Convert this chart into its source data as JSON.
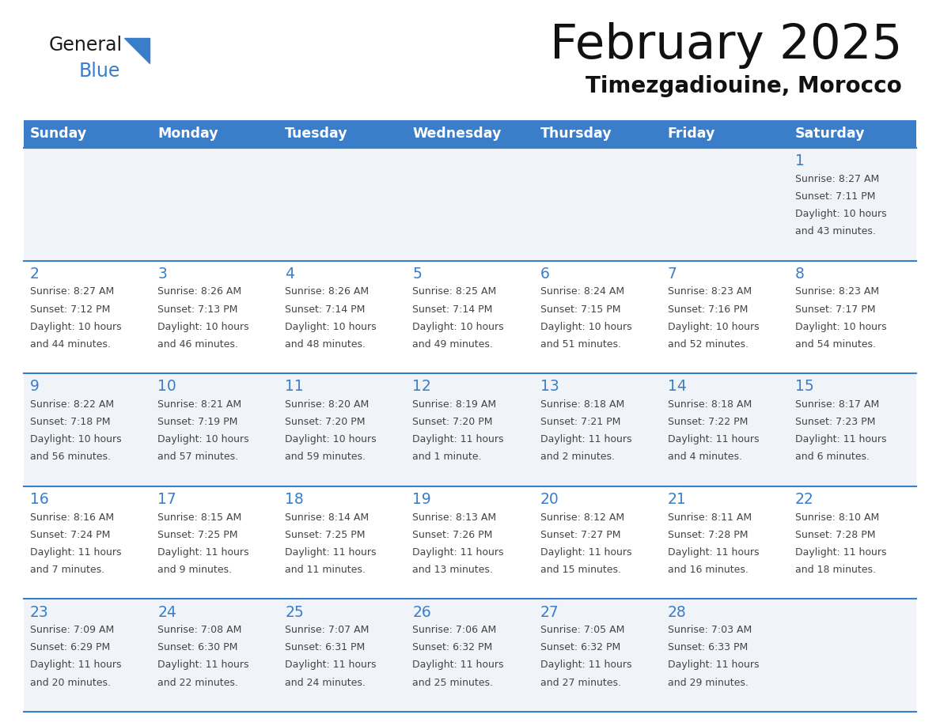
{
  "title": "February 2025",
  "subtitle": "Timezgadiouine, Morocco",
  "days_of_week": [
    "Sunday",
    "Monday",
    "Tuesday",
    "Wednesday",
    "Thursday",
    "Friday",
    "Saturday"
  ],
  "header_bg_color": "#3A7DC9",
  "header_text_color": "#FFFFFF",
  "cell_bg_color_light": "#F0F4F8",
  "cell_bg_color_white": "#FFFFFF",
  "day_num_color": "#3A7DC9",
  "text_color": "#444444",
  "line_color": "#3A7DC9",
  "logo_general_color": "#1a1a1a",
  "logo_blue_color": "#3A7DC9",
  "calendar_data": [
    [
      null,
      null,
      null,
      null,
      null,
      null,
      {
        "day": 1,
        "sunrise": "8:27 AM",
        "sunset": "7:11 PM",
        "daylight": "10 hours and 43 minutes."
      }
    ],
    [
      {
        "day": 2,
        "sunrise": "8:27 AM",
        "sunset": "7:12 PM",
        "daylight": "10 hours and 44 minutes."
      },
      {
        "day": 3,
        "sunrise": "8:26 AM",
        "sunset": "7:13 PM",
        "daylight": "10 hours and 46 minutes."
      },
      {
        "day": 4,
        "sunrise": "8:26 AM",
        "sunset": "7:14 PM",
        "daylight": "10 hours and 48 minutes."
      },
      {
        "day": 5,
        "sunrise": "8:25 AM",
        "sunset": "7:14 PM",
        "daylight": "10 hours and 49 minutes."
      },
      {
        "day": 6,
        "sunrise": "8:24 AM",
        "sunset": "7:15 PM",
        "daylight": "10 hours and 51 minutes."
      },
      {
        "day": 7,
        "sunrise": "8:23 AM",
        "sunset": "7:16 PM",
        "daylight": "10 hours and 52 minutes."
      },
      {
        "day": 8,
        "sunrise": "8:23 AM",
        "sunset": "7:17 PM",
        "daylight": "10 hours and 54 minutes."
      }
    ],
    [
      {
        "day": 9,
        "sunrise": "8:22 AM",
        "sunset": "7:18 PM",
        "daylight": "10 hours and 56 minutes."
      },
      {
        "day": 10,
        "sunrise": "8:21 AM",
        "sunset": "7:19 PM",
        "daylight": "10 hours and 57 minutes."
      },
      {
        "day": 11,
        "sunrise": "8:20 AM",
        "sunset": "7:20 PM",
        "daylight": "10 hours and 59 minutes."
      },
      {
        "day": 12,
        "sunrise": "8:19 AM",
        "sunset": "7:20 PM",
        "daylight": "11 hours and 1 minute."
      },
      {
        "day": 13,
        "sunrise": "8:18 AM",
        "sunset": "7:21 PM",
        "daylight": "11 hours and 2 minutes."
      },
      {
        "day": 14,
        "sunrise": "8:18 AM",
        "sunset": "7:22 PM",
        "daylight": "11 hours and 4 minutes."
      },
      {
        "day": 15,
        "sunrise": "8:17 AM",
        "sunset": "7:23 PM",
        "daylight": "11 hours and 6 minutes."
      }
    ],
    [
      {
        "day": 16,
        "sunrise": "8:16 AM",
        "sunset": "7:24 PM",
        "daylight": "11 hours and 7 minutes."
      },
      {
        "day": 17,
        "sunrise": "8:15 AM",
        "sunset": "7:25 PM",
        "daylight": "11 hours and 9 minutes."
      },
      {
        "day": 18,
        "sunrise": "8:14 AM",
        "sunset": "7:25 PM",
        "daylight": "11 hours and 11 minutes."
      },
      {
        "day": 19,
        "sunrise": "8:13 AM",
        "sunset": "7:26 PM",
        "daylight": "11 hours and 13 minutes."
      },
      {
        "day": 20,
        "sunrise": "8:12 AM",
        "sunset": "7:27 PM",
        "daylight": "11 hours and 15 minutes."
      },
      {
        "day": 21,
        "sunrise": "8:11 AM",
        "sunset": "7:28 PM",
        "daylight": "11 hours and 16 minutes."
      },
      {
        "day": 22,
        "sunrise": "8:10 AM",
        "sunset": "7:28 PM",
        "daylight": "11 hours and 18 minutes."
      }
    ],
    [
      {
        "day": 23,
        "sunrise": "7:09 AM",
        "sunset": "6:29 PM",
        "daylight": "11 hours and 20 minutes."
      },
      {
        "day": 24,
        "sunrise": "7:08 AM",
        "sunset": "6:30 PM",
        "daylight": "11 hours and 22 minutes."
      },
      {
        "day": 25,
        "sunrise": "7:07 AM",
        "sunset": "6:31 PM",
        "daylight": "11 hours and 24 minutes."
      },
      {
        "day": 26,
        "sunrise": "7:06 AM",
        "sunset": "6:32 PM",
        "daylight": "11 hours and 25 minutes."
      },
      {
        "day": 27,
        "sunrise": "7:05 AM",
        "sunset": "6:32 PM",
        "daylight": "11 hours and 27 minutes."
      },
      {
        "day": 28,
        "sunrise": "7:03 AM",
        "sunset": "6:33 PM",
        "daylight": "11 hours and 29 minutes."
      },
      null
    ]
  ]
}
